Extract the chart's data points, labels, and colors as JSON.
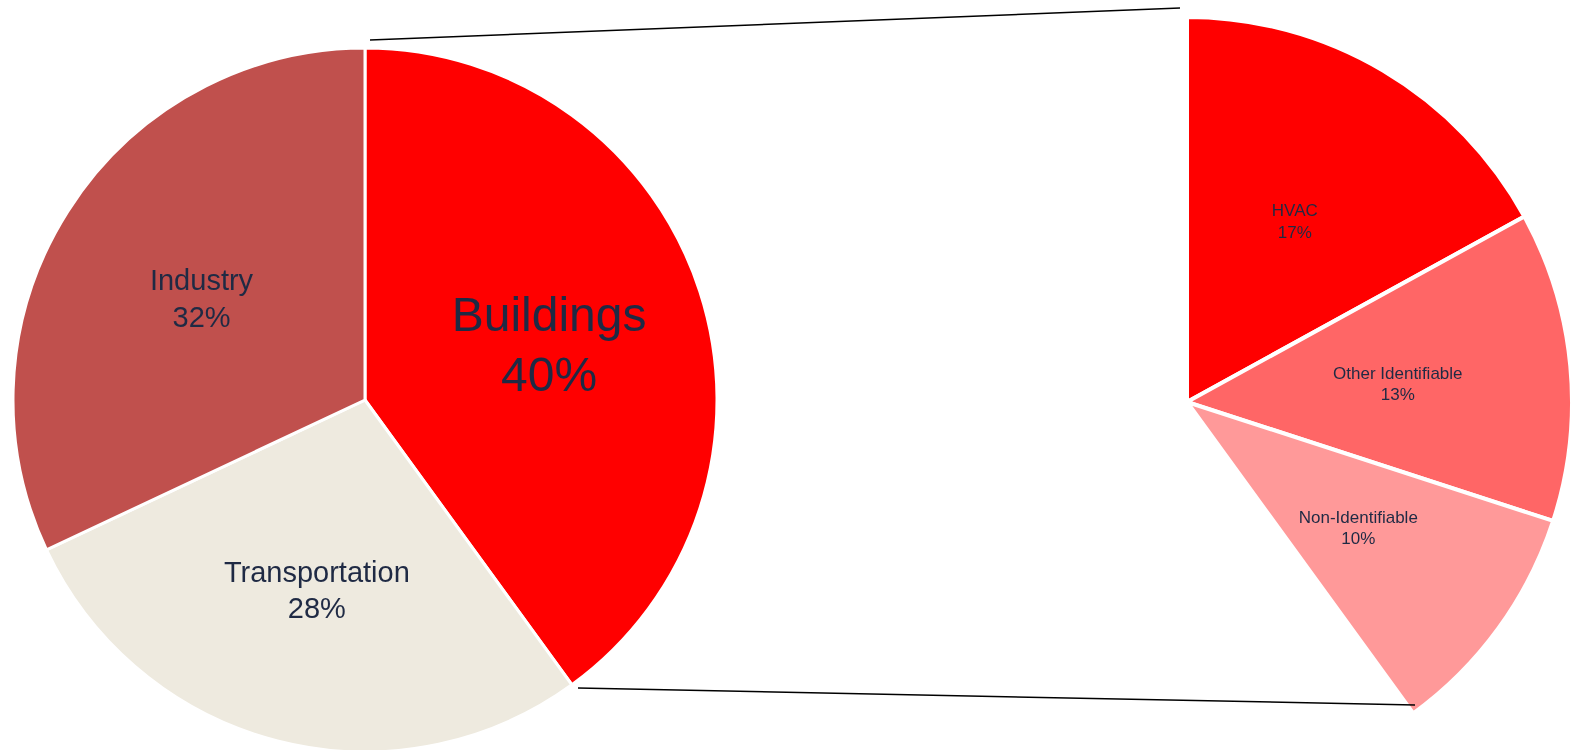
{
  "chart_data": [
    {
      "type": "pie",
      "categories": [
        "Buildings",
        "Transportation",
        "Industry"
      ],
      "values": [
        40,
        28,
        32
      ],
      "colors": [
        "#ff0000",
        "#eeeadf",
        "#c0504d"
      ],
      "value_labels": [
        "40%",
        "28%",
        "32%"
      ]
    },
    {
      "type": "pie",
      "categories": [
        "HVAC",
        "Other Identifiable",
        "Non-Identifiable"
      ],
      "values": [
        17,
        13,
        10
      ],
      "colors": [
        "#ff0000",
        "#ff6666",
        "#ff9999"
      ],
      "value_labels": [
        "17%",
        "13%",
        "10%"
      ]
    }
  ]
}
